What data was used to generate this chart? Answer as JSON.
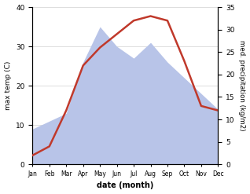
{
  "months": [
    "Jan",
    "Feb",
    "Mar",
    "Apr",
    "May",
    "Jun",
    "Jul",
    "Aug",
    "Sep",
    "Oct",
    "Nov",
    "Dec"
  ],
  "precipitation": [
    9,
    11,
    13,
    26,
    35,
    30,
    27,
    31,
    26,
    22,
    18,
    14
  ],
  "temperature": [
    2,
    4,
    12,
    22,
    26,
    29,
    32,
    33,
    32,
    23,
    13,
    12
  ],
  "temp_color": "#c0392b",
  "precip_color_fill": "#b8c4e8",
  "precip_ylim": [
    0,
    40
  ],
  "precip_yticks": [
    0,
    10,
    20,
    30,
    40
  ],
  "temp_ylim": [
    0,
    35
  ],
  "temp_yticks": [
    0,
    5,
    10,
    15,
    20,
    25,
    30,
    35
  ],
  "xlabel": "date (month)",
  "ylabel_left": "max temp (C)",
  "ylabel_right": "med. precipitation (kg/m2)",
  "background_color": "#ffffff",
  "grid_color": "#d0d0d0"
}
